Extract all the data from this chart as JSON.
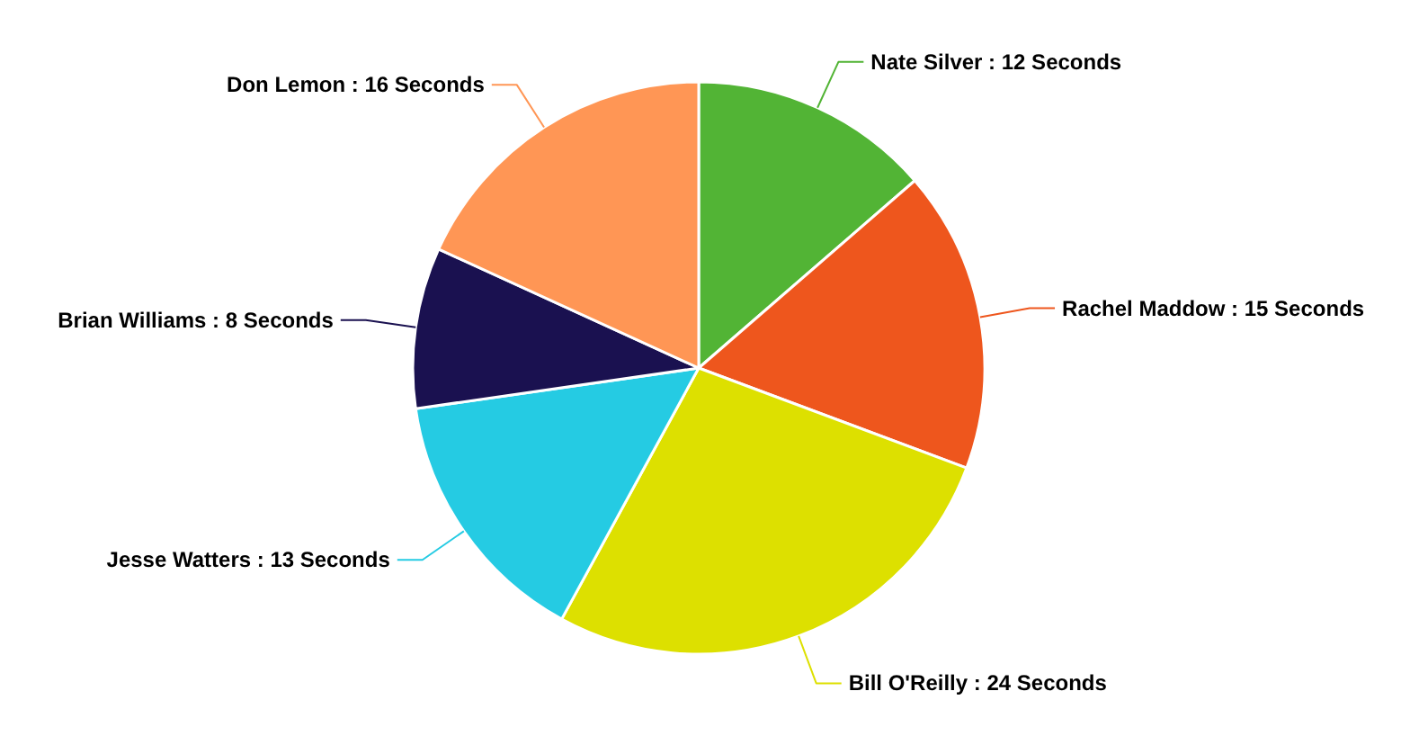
{
  "chart_data": {
    "type": "pie",
    "categories": [
      "Nate Silver",
      "Rachel Maddow",
      "Bill O'Reilly",
      "Jesse Watters",
      "Brian Williams",
      "Don Lemon"
    ],
    "values": [
      12,
      15,
      24,
      13,
      8,
      16
    ],
    "value_labels": [
      "12 Seconds",
      "15 Seconds",
      "24 Seconds",
      "13 Seconds",
      "8 Seconds",
      "16 Seconds"
    ],
    "colors": [
      "#52b435",
      "#ee561d",
      "#dde000",
      "#25cbe3",
      "#1a1150",
      "#ff9655"
    ]
  }
}
